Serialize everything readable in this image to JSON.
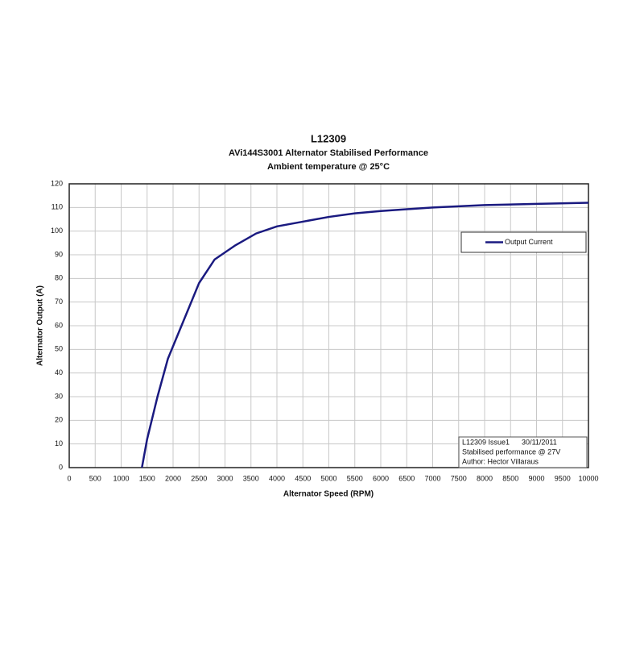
{
  "chart_data": {
    "type": "line",
    "title": "L12309",
    "subtitle": [
      "AVi144S3001 Alternator Stabilised Performance",
      "Ambient temperature @ 25°C"
    ],
    "xlabel": "Alternator Speed (RPM)",
    "ylabel": "Alternator Output (A)",
    "x": [
      1400,
      1500,
      1700,
      1900,
      2200,
      2500,
      2800,
      3200,
      3600,
      4000,
      4500,
      5000,
      5500,
      6000,
      7000,
      8000,
      9000,
      10000
    ],
    "series": [
      {
        "name": "Output Current",
        "color": "#1a1a80",
        "values": [
          0,
          12,
          30,
          46,
          62,
          78,
          88,
          94,
          99,
          102,
          104,
          106,
          107.5,
          108.5,
          110,
          111,
          111.5,
          112
        ]
      }
    ],
    "xlim": [
      0,
      10000
    ],
    "ylim": [
      0,
      120
    ],
    "xticks": [
      0,
      500,
      1000,
      1500,
      2000,
      2500,
      3000,
      3500,
      4000,
      4500,
      5000,
      5500,
      6000,
      6500,
      7000,
      7500,
      8000,
      8500,
      9000,
      9500,
      10000
    ],
    "yticks": [
      0,
      10,
      20,
      30,
      40,
      50,
      60,
      70,
      80,
      90,
      100,
      110,
      120
    ],
    "grid": true,
    "legend": "upper right",
    "annotations": [
      "L12309 Issue1      30/11/2011",
      "Stabilised performance @ 27V",
      "Author: Hector Villaraus"
    ]
  }
}
